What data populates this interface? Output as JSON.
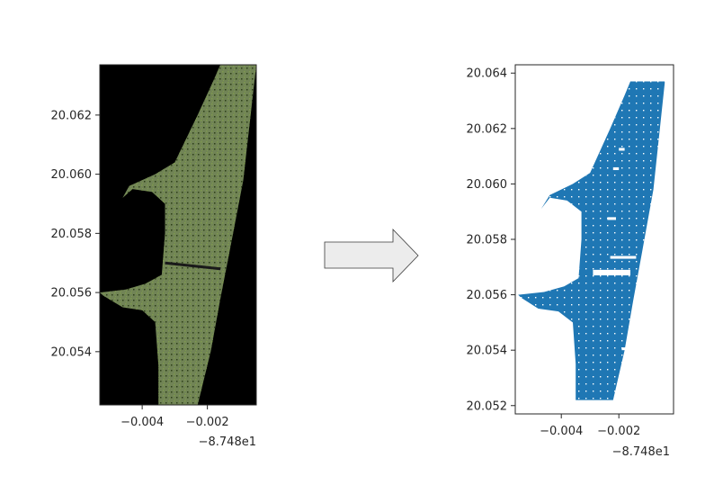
{
  "colors": {
    "image_background": "#000000",
    "vegetation_dark": "#4f6e2a",
    "vegetation_light": "#7f9a4e",
    "sand_gray": "#8e977a",
    "scatter_fill": "#1f77b4",
    "arrow_fill": "#ececec",
    "arrow_stroke": "#3a3a3a",
    "axis_color": "#262626"
  },
  "arrow": {
    "icon": "right-arrow-icon"
  },
  "chart_data": [
    {
      "type": "image",
      "panel": "left",
      "xlabel": "",
      "ylabel": "",
      "x_offset_label": "−8.748e1",
      "x_ticks": [
        {
          "value": -0.004,
          "label": "−0.004"
        },
        {
          "value": -0.002,
          "label": "−0.002"
        }
      ],
      "y_ticks": [
        {
          "value": 20.054,
          "label": "20.054"
        },
        {
          "value": 20.056,
          "label": "20.056"
        },
        {
          "value": 20.058,
          "label": "20.058"
        },
        {
          "value": 20.06,
          "label": "20.060"
        },
        {
          "value": 20.062,
          "label": "20.062"
        }
      ],
      "xlim": [
        -0.0053,
        -0.0005
      ],
      "ylim": [
        20.0522,
        20.0637
      ],
      "outline": [
        [
          -0.0016,
          20.0637
        ],
        [
          -0.0005,
          20.0637
        ],
        [
          -0.0009,
          20.0598
        ],
        [
          -0.0013,
          20.0575
        ],
        [
          -0.0016,
          20.0558
        ],
        [
          -0.0019,
          20.054
        ],
        [
          -0.0023,
          20.0522
        ],
        [
          -0.0035,
          20.0522
        ],
        [
          -0.0035,
          20.0535
        ],
        [
          -0.0036,
          20.055
        ],
        [
          -0.004,
          20.0554
        ],
        [
          -0.0046,
          20.0555
        ],
        [
          -0.0052,
          20.0559
        ],
        [
          -0.0053,
          20.056
        ],
        [
          -0.0045,
          20.0561
        ],
        [
          -0.0039,
          20.0563
        ],
        [
          -0.0034,
          20.0566
        ],
        [
          -0.0033,
          20.058
        ],
        [
          -0.0033,
          20.059
        ],
        [
          -0.0037,
          20.0594
        ],
        [
          -0.0043,
          20.0595
        ],
        [
          -0.0046,
          20.0592
        ],
        [
          -0.0044,
          20.0596
        ],
        [
          -0.0036,
          20.06
        ],
        [
          -0.003,
          20.0604
        ],
        [
          -0.0023,
          20.062
        ],
        [
          -0.0018,
          20.0632
        ]
      ]
    },
    {
      "type": "scatter",
      "panel": "right",
      "xlabel": "",
      "ylabel": "",
      "x_offset_label": "−8.748e1",
      "x_ticks": [
        {
          "value": -0.004,
          "label": "−0.004"
        },
        {
          "value": -0.002,
          "label": "−0.002"
        }
      ],
      "y_ticks": [
        {
          "value": 20.052,
          "label": "20.052"
        },
        {
          "value": 20.054,
          "label": "20.054"
        },
        {
          "value": 20.056,
          "label": "20.056"
        },
        {
          "value": 20.058,
          "label": "20.058"
        },
        {
          "value": 20.06,
          "label": "20.060"
        },
        {
          "value": 20.062,
          "label": "20.062"
        },
        {
          "value": 20.064,
          "label": "20.064"
        }
      ],
      "xlim": [
        -0.0056,
        -0.0001
      ],
      "ylim": [
        20.0517,
        20.0643
      ],
      "outline": [
        [
          -0.0016,
          20.0637
        ],
        [
          -0.0004,
          20.0637
        ],
        [
          -0.0008,
          20.0598
        ],
        [
          -0.0012,
          20.0575
        ],
        [
          -0.0015,
          20.0558
        ],
        [
          -0.0018,
          20.054
        ],
        [
          -0.0022,
          20.0522
        ],
        [
          -0.0035,
          20.0522
        ],
        [
          -0.0035,
          20.0535
        ],
        [
          -0.0036,
          20.055
        ],
        [
          -0.0041,
          20.0554
        ],
        [
          -0.0048,
          20.0555
        ],
        [
          -0.0054,
          20.0559
        ],
        [
          -0.0055,
          20.056
        ],
        [
          -0.0046,
          20.0561
        ],
        [
          -0.0039,
          20.0563
        ],
        [
          -0.0034,
          20.0566
        ],
        [
          -0.0033,
          20.058
        ],
        [
          -0.0033,
          20.059
        ],
        [
          -0.0038,
          20.0594
        ],
        [
          -0.0044,
          20.0595
        ],
        [
          -0.0047,
          20.0591
        ],
        [
          -0.0044,
          20.0596
        ],
        [
          -0.0036,
          20.06
        ],
        [
          -0.003,
          20.0604
        ],
        [
          -0.0023,
          20.062
        ],
        [
          -0.0018,
          20.0632
        ]
      ],
      "gaps": [
        [
          -0.0029,
          20.0567,
          -0.0016,
          20.0569
        ],
        [
          -0.0023,
          20.0573,
          -0.0014,
          20.0574
        ],
        [
          -0.0024,
          20.0587,
          -0.0021,
          20.0588
        ],
        [
          -0.0022,
          20.0605,
          -0.002,
          20.0606
        ],
        [
          -0.0019,
          20.054,
          -0.0017,
          20.0541
        ],
        [
          -0.002,
          20.0612,
          -0.0018,
          20.0613
        ]
      ]
    }
  ]
}
